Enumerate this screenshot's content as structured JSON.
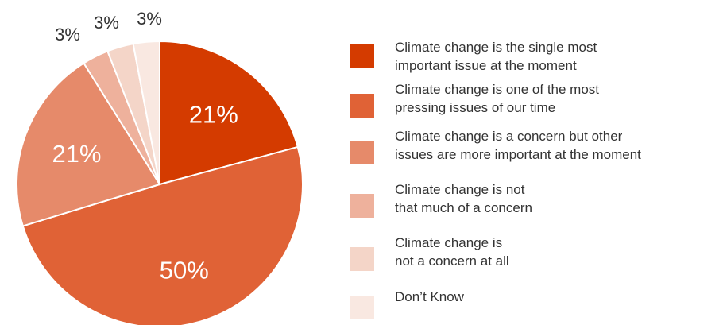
{
  "chart_data": {
    "type": "pie",
    "title": "",
    "slices": [
      {
        "label": [
          "Climate change is the single most",
          "important issue at the moment"
        ],
        "value": 21,
        "display": "21%",
        "color": "#d43b00"
      },
      {
        "label": [
          "Climate change is one of the most",
          "pressing issues of our time"
        ],
        "value": 50,
        "display": "50%",
        "color": "#e06236"
      },
      {
        "label": [
          "Climate change is a concern but other",
          "issues are more important at the moment"
        ],
        "value": 21,
        "display": "21%",
        "color": "#e68a6a"
      },
      {
        "label": [
          "Climate change is not",
          "that much of a concern"
        ],
        "value": 3,
        "display": "3%",
        "color": "#eeb19c"
      },
      {
        "label": [
          "Climate change is",
          "not a concern at all"
        ],
        "value": 3,
        "display": "3%",
        "color": "#f4d5c8"
      },
      {
        "label": [
          "Don’t Know"
        ],
        "value": 3,
        "display": "3%",
        "color": "#f9e8e1"
      }
    ],
    "legend_position": "right"
  }
}
